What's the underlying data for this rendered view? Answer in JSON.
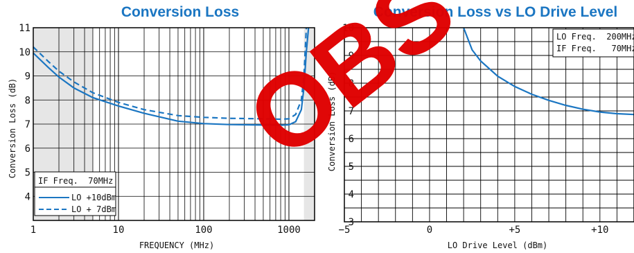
{
  "chart_data": [
    {
      "type": "line",
      "title": "Conversion Loss",
      "xlabel": "FREQUENCY (MHz)",
      "ylabel": "Conversion Loss (dB)",
      "xscale": "log",
      "xlim": [
        1,
        2000
      ],
      "ylim": [
        3,
        11
      ],
      "x_ticks": [
        "1",
        "10",
        "100",
        "1000"
      ],
      "y_ticks": [
        "4",
        "5",
        "6",
        "7",
        "8",
        "9",
        "10",
        "11"
      ],
      "grid": true,
      "shaded_ranges": [
        [
          1,
          5
        ],
        [
          1500,
          2000
        ]
      ],
      "legend": {
        "position": "bottom-left",
        "header": "IF Freq.  70MHz",
        "entries": [
          "LO +10dBm",
          "LO + 7dBm"
        ]
      },
      "series": [
        {
          "name": "LO +10dBm",
          "style": "solid",
          "color": "#1b76c2",
          "x": [
            1,
            1.5,
            2,
            3,
            5,
            10,
            20,
            50,
            100,
            200,
            500,
            800,
            1000,
            1200,
            1400,
            1500,
            1600,
            1700
          ],
          "y": [
            9.95,
            9.35,
            8.95,
            8.5,
            8.1,
            7.75,
            7.45,
            7.12,
            7.02,
            6.98,
            6.96,
            6.95,
            6.97,
            7.1,
            7.6,
            8.5,
            10.0,
            11.0
          ]
        },
        {
          "name": "LO + 7dBm",
          "style": "dashed",
          "color": "#1b76c2",
          "x": [
            1,
            1.5,
            2,
            3,
            5,
            10,
            20,
            50,
            100,
            200,
            500,
            800,
            1000,
            1200,
            1400,
            1500,
            1600
          ],
          "y": [
            10.2,
            9.6,
            9.2,
            8.75,
            8.3,
            7.9,
            7.6,
            7.35,
            7.28,
            7.24,
            7.22,
            7.2,
            7.22,
            7.4,
            8.0,
            9.0,
            11.0
          ]
        }
      ]
    },
    {
      "type": "line",
      "title": "Conversion Loss vs LO Drive Level",
      "xlabel": "LO Drive Level (dBm)",
      "ylabel": "Conversion Loss (dB)",
      "xlim": [
        -5,
        12
      ],
      "ylim": [
        3,
        10
      ],
      "x_ticks": [
        "−5",
        "0",
        "+5",
        "+10"
      ],
      "y_ticks": [
        "3",
        "4",
        "5",
        "6",
        "7",
        "8",
        "9",
        "10"
      ],
      "grid": true,
      "annotation_box": {
        "position": "top-right",
        "lines": [
          "LO Freq.  200MHz",
          "IF Freq.   70MHz"
        ]
      },
      "series": [
        {
          "color": "#1b76c2",
          "style": "solid",
          "x": [
            2,
            2.5,
            3,
            4,
            5,
            6,
            7,
            8,
            9,
            10,
            11,
            12
          ],
          "y": [
            10.0,
            9.2,
            8.8,
            8.25,
            7.88,
            7.6,
            7.38,
            7.2,
            7.06,
            6.96,
            6.9,
            6.87
          ]
        }
      ]
    }
  ],
  "watermark": {
    "text": "OBS",
    "color": "#e00000"
  }
}
